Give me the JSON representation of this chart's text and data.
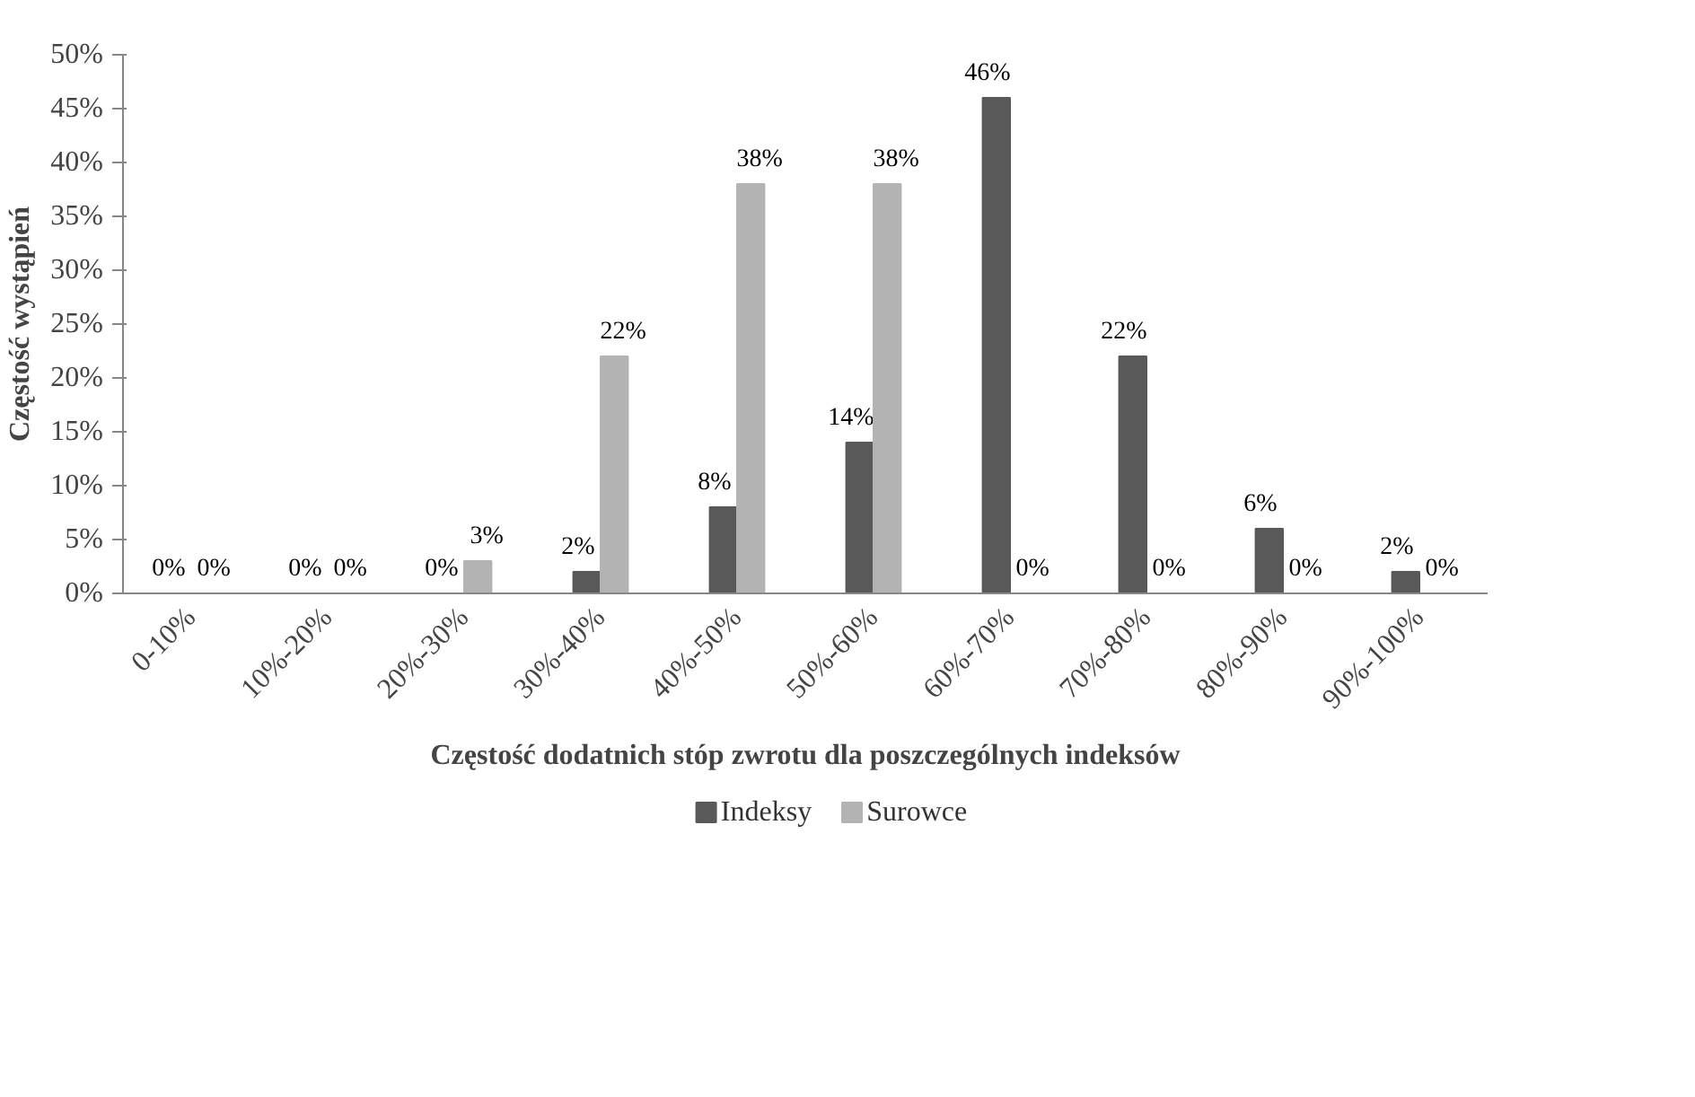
{
  "chart_data": {
    "type": "bar",
    "xlabel": "Częstość dodatnich stóp zwrotu dla poszczególnych indeksów",
    "ylabel": "Częstość wystąpień",
    "categories": [
      "0-10%",
      "10%-20%",
      "20%-30%",
      "30%-40%",
      "40%-50%",
      "50%-60%",
      "60%-70%",
      "70%-80%",
      "80%-90%",
      "90%-100%"
    ],
    "series": [
      {
        "name": "Indeksy",
        "color": "#595959",
        "values": [
          0,
          0,
          0,
          2,
          8,
          14,
          46,
          22,
          6,
          2
        ],
        "value_labels": [
          "0%",
          "0%",
          "0%",
          "2%",
          "8%",
          "14%",
          "46%",
          "22%",
          "6%",
          "2%"
        ]
      },
      {
        "name": "Surowce",
        "color": "#b3b3b3",
        "values": [
          0,
          0,
          3,
          22,
          38,
          38,
          0,
          0,
          0,
          0
        ],
        "value_labels": [
          "0%",
          "0%",
          "3%",
          "22%",
          "38%",
          "38%",
          "0%",
          "0%",
          "0%",
          "0%"
        ]
      }
    ],
    "ylim": [
      0,
      50
    ],
    "yticks": [
      {
        "value": 0,
        "label": "0%"
      },
      {
        "value": 5,
        "label": "5%"
      },
      {
        "value": 10,
        "label": "10%"
      },
      {
        "value": 15,
        "label": "15%"
      },
      {
        "value": 20,
        "label": "20%"
      },
      {
        "value": 25,
        "label": "25%"
      },
      {
        "value": 30,
        "label": "30%"
      },
      {
        "value": 35,
        "label": "35%"
      },
      {
        "value": 40,
        "label": "40%"
      },
      {
        "value": 45,
        "label": "45%"
      },
      {
        "value": 50,
        "label": "50%"
      }
    ],
    "grid": false,
    "legend": "bottom"
  }
}
